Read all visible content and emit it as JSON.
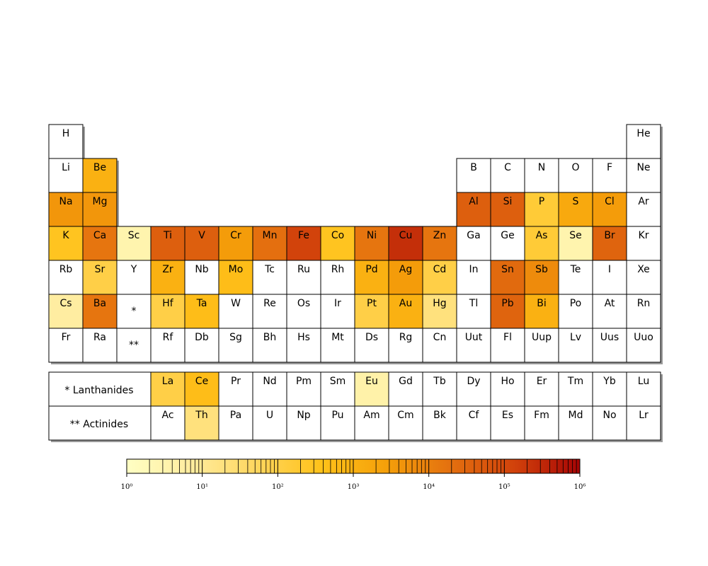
{
  "chart_data": {
    "type": "heatmap",
    "title": "",
    "colorbar": {
      "min": 0,
      "max": 6,
      "log_base": 10,
      "tick_labels": [
        "10⁰",
        "10¹",
        "10²",
        "10³",
        "10⁴",
        "10⁵",
        "10⁶"
      ]
    },
    "colorscale": [
      "#ffffc4",
      "#ffec9e",
      "#ffd65e",
      "#ffc21a",
      "#f5a00a",
      "#e4700f",
      "#d1410b",
      "#a70505"
    ],
    "lanthanides_label": "* Lanthanides",
    "actinides_label": "** Actinides",
    "placeholders": [
      {
        "row": 6,
        "col": 3,
        "symbol": "*"
      },
      {
        "row": 7,
        "col": 3,
        "symbol": "**"
      }
    ],
    "elements": [
      {
        "symbol": "H",
        "row": 1,
        "col": 1
      },
      {
        "symbol": "He",
        "row": 1,
        "col": 18
      },
      {
        "symbol": "Li",
        "row": 2,
        "col": 1
      },
      {
        "symbol": "Be",
        "row": 2,
        "col": 2,
        "value": 3.0
      },
      {
        "symbol": "B",
        "row": 2,
        "col": 13
      },
      {
        "symbol": "C",
        "row": 2,
        "col": 14
      },
      {
        "symbol": "N",
        "row": 2,
        "col": 15
      },
      {
        "symbol": "O",
        "row": 2,
        "col": 16
      },
      {
        "symbol": "F",
        "row": 2,
        "col": 17
      },
      {
        "symbol": "Ne",
        "row": 2,
        "col": 18
      },
      {
        "symbol": "Na",
        "row": 3,
        "col": 1,
        "value": 3.6
      },
      {
        "symbol": "Mg",
        "row": 3,
        "col": 2,
        "value": 3.6
      },
      {
        "symbol": "Al",
        "row": 3,
        "col": 13,
        "value": 4.6
      },
      {
        "symbol": "Si",
        "row": 3,
        "col": 14,
        "value": 4.6
      },
      {
        "symbol": "P",
        "row": 3,
        "col": 15,
        "value": 2.2
      },
      {
        "symbol": "S",
        "row": 3,
        "col": 16,
        "value": 3.2
      },
      {
        "symbol": "Cl",
        "row": 3,
        "col": 17,
        "value": 3.5
      },
      {
        "symbol": "Ar",
        "row": 3,
        "col": 18
      },
      {
        "symbol": "K",
        "row": 4,
        "col": 1,
        "value": 2.5
      },
      {
        "symbol": "Ca",
        "row": 4,
        "col": 2,
        "value": 4.2
      },
      {
        "symbol": "Sc",
        "row": 4,
        "col": 3,
        "value": 0.5
      },
      {
        "symbol": "Ti",
        "row": 4,
        "col": 4,
        "value": 4.6
      },
      {
        "symbol": "V",
        "row": 4,
        "col": 5,
        "value": 4.6
      },
      {
        "symbol": "Cr",
        "row": 4,
        "col": 6,
        "value": 3.5
      },
      {
        "symbol": "Mn",
        "row": 4,
        "col": 7,
        "value": 4.3
      },
      {
        "symbol": "Fe",
        "row": 4,
        "col": 8,
        "value": 5.1
      },
      {
        "symbol": "Co",
        "row": 4,
        "col": 9,
        "value": 2.5
      },
      {
        "symbol": "Ni",
        "row": 4,
        "col": 10,
        "value": 4.2
      },
      {
        "symbol": "Cu",
        "row": 4,
        "col": 11,
        "value": 5.4
      },
      {
        "symbol": "Zn",
        "row": 4,
        "col": 12,
        "value": 4.2
      },
      {
        "symbol": "Ga",
        "row": 4,
        "col": 13
      },
      {
        "symbol": "Ge",
        "row": 4,
        "col": 14
      },
      {
        "symbol": "As",
        "row": 4,
        "col": 15,
        "value": 2.2
      },
      {
        "symbol": "Se",
        "row": 4,
        "col": 16,
        "value": 0.5
      },
      {
        "symbol": "Br",
        "row": 4,
        "col": 17,
        "value": 4.5
      },
      {
        "symbol": "Kr",
        "row": 4,
        "col": 18
      },
      {
        "symbol": "Rb",
        "row": 5,
        "col": 1
      },
      {
        "symbol": "Sr",
        "row": 5,
        "col": 2,
        "value": 2.0
      },
      {
        "symbol": "Y",
        "row": 5,
        "col": 3
      },
      {
        "symbol": "Zr",
        "row": 5,
        "col": 4,
        "value": 3.0
      },
      {
        "symbol": "Nb",
        "row": 5,
        "col": 5
      },
      {
        "symbol": "Mo",
        "row": 5,
        "col": 6,
        "value": 2.7
      },
      {
        "symbol": "Tc",
        "row": 5,
        "col": 7
      },
      {
        "symbol": "Ru",
        "row": 5,
        "col": 8
      },
      {
        "symbol": "Rh",
        "row": 5,
        "col": 9
      },
      {
        "symbol": "Pd",
        "row": 5,
        "col": 10,
        "value": 3.0
      },
      {
        "symbol": "Ag",
        "row": 5,
        "col": 11,
        "value": 3.5
      },
      {
        "symbol": "Cd",
        "row": 5,
        "col": 12,
        "value": 2.0
      },
      {
        "symbol": "In",
        "row": 5,
        "col": 13
      },
      {
        "symbol": "Sn",
        "row": 5,
        "col": 14,
        "value": 4.4
      },
      {
        "symbol": "Sb",
        "row": 5,
        "col": 15,
        "value": 3.8
      },
      {
        "symbol": "Te",
        "row": 5,
        "col": 16
      },
      {
        "symbol": "I",
        "row": 5,
        "col": 17
      },
      {
        "symbol": "Xe",
        "row": 5,
        "col": 18
      },
      {
        "symbol": "Cs",
        "row": 6,
        "col": 1,
        "value": 0.8
      },
      {
        "symbol": "Ba",
        "row": 6,
        "col": 2,
        "value": 4.2
      },
      {
        "symbol": "Hf",
        "row": 6,
        "col": 4,
        "value": 2.0
      },
      {
        "symbol": "Ta",
        "row": 6,
        "col": 5,
        "value": 2.7
      },
      {
        "symbol": "W",
        "row": 6,
        "col": 6
      },
      {
        "symbol": "Re",
        "row": 6,
        "col": 7
      },
      {
        "symbol": "Os",
        "row": 6,
        "col": 8
      },
      {
        "symbol": "Ir",
        "row": 6,
        "col": 9
      },
      {
        "symbol": "Pt",
        "row": 6,
        "col": 10,
        "value": 2.0
      },
      {
        "symbol": "Au",
        "row": 6,
        "col": 11,
        "value": 3.0
      },
      {
        "symbol": "Hg",
        "row": 6,
        "col": 12,
        "value": 1.3
      },
      {
        "symbol": "Tl",
        "row": 6,
        "col": 13
      },
      {
        "symbol": "Pb",
        "row": 6,
        "col": 14,
        "value": 4.5
      },
      {
        "symbol": "Bi",
        "row": 6,
        "col": 15,
        "value": 3.0
      },
      {
        "symbol": "Po",
        "row": 6,
        "col": 16
      },
      {
        "symbol": "At",
        "row": 6,
        "col": 17
      },
      {
        "symbol": "Rn",
        "row": 6,
        "col": 18
      },
      {
        "symbol": "Fr",
        "row": 7,
        "col": 1
      },
      {
        "symbol": "Ra",
        "row": 7,
        "col": 2
      },
      {
        "symbol": "Rf",
        "row": 7,
        "col": 4
      },
      {
        "symbol": "Db",
        "row": 7,
        "col": 5
      },
      {
        "symbol": "Sg",
        "row": 7,
        "col": 6
      },
      {
        "symbol": "Bh",
        "row": 7,
        "col": 7
      },
      {
        "symbol": "Hs",
        "row": 7,
        "col": 8
      },
      {
        "symbol": "Mt",
        "row": 7,
        "col": 9
      },
      {
        "symbol": "Ds",
        "row": 7,
        "col": 10
      },
      {
        "symbol": "Rg",
        "row": 7,
        "col": 11
      },
      {
        "symbol": "Cn",
        "row": 7,
        "col": 12
      },
      {
        "symbol": "Uut",
        "row": 7,
        "col": 13
      },
      {
        "symbol": "Fl",
        "row": 7,
        "col": 14
      },
      {
        "symbol": "Uup",
        "row": 7,
        "col": 15
      },
      {
        "symbol": "Lv",
        "row": 7,
        "col": 16
      },
      {
        "symbol": "Uus",
        "row": 7,
        "col": 17
      },
      {
        "symbol": "Uuo",
        "row": 7,
        "col": 18
      },
      {
        "symbol": "La",
        "row": 9,
        "col": 4,
        "value": 2.0
      },
      {
        "symbol": "Ce",
        "row": 9,
        "col": 5,
        "value": 2.7
      },
      {
        "symbol": "Pr",
        "row": 9,
        "col": 6
      },
      {
        "symbol": "Nd",
        "row": 9,
        "col": 7
      },
      {
        "symbol": "Pm",
        "row": 9,
        "col": 8
      },
      {
        "symbol": "Sm",
        "row": 9,
        "col": 9
      },
      {
        "symbol": "Eu",
        "row": 9,
        "col": 10,
        "value": 0.6
      },
      {
        "symbol": "Gd",
        "row": 9,
        "col": 11
      },
      {
        "symbol": "Tb",
        "row": 9,
        "col": 12
      },
      {
        "symbol": "Dy",
        "row": 9,
        "col": 13
      },
      {
        "symbol": "Ho",
        "row": 9,
        "col": 14
      },
      {
        "symbol": "Er",
        "row": 9,
        "col": 15
      },
      {
        "symbol": "Tm",
        "row": 9,
        "col": 16
      },
      {
        "symbol": "Yb",
        "row": 9,
        "col": 17
      },
      {
        "symbol": "Lu",
        "row": 9,
        "col": 18
      },
      {
        "symbol": "Ac",
        "row": 10,
        "col": 4
      },
      {
        "symbol": "Th",
        "row": 10,
        "col": 5,
        "value": 1.3
      },
      {
        "symbol": "Pa",
        "row": 10,
        "col": 6
      },
      {
        "symbol": "U",
        "row": 10,
        "col": 7
      },
      {
        "symbol": "Np",
        "row": 10,
        "col": 8
      },
      {
        "symbol": "Pu",
        "row": 10,
        "col": 9
      },
      {
        "symbol": "Am",
        "row": 10,
        "col": 10
      },
      {
        "symbol": "Cm",
        "row": 10,
        "col": 11
      },
      {
        "symbol": "Bk",
        "row": 10,
        "col": 12
      },
      {
        "symbol": "Cf",
        "row": 10,
        "col": 13
      },
      {
        "symbol": "Es",
        "row": 10,
        "col": 14
      },
      {
        "symbol": "Fm",
        "row": 10,
        "col": 15
      },
      {
        "symbol": "Md",
        "row": 10,
        "col": 16
      },
      {
        "symbol": "No",
        "row": 10,
        "col": 17
      },
      {
        "symbol": "Lr",
        "row": 10,
        "col": 18
      }
    ]
  }
}
